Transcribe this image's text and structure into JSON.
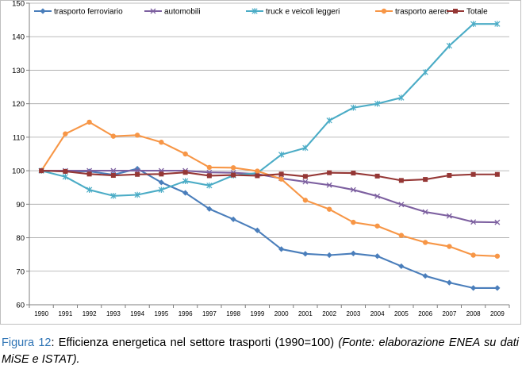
{
  "chart_data": {
    "type": "line",
    "title": "",
    "xlabel": "",
    "ylabel": "",
    "ylim": [
      60,
      150
    ],
    "yticks": [
      60,
      70,
      80,
      90,
      100,
      110,
      120,
      130,
      140,
      150
    ],
    "grid": "horizontal",
    "legend_position": "top",
    "categories": [
      "1990",
      "1991",
      "1992",
      "1993",
      "1994",
      "1995",
      "1996",
      "1997",
      "1998",
      "1999",
      "2000",
      "2001",
      "2002",
      "2003",
      "2004",
      "2005",
      "2006",
      "2007",
      "2008",
      "2009"
    ],
    "series": [
      {
        "name": "trasporto ferroviario",
        "color": "#4a7ebb",
        "marker": "diamond",
        "values": [
          100,
          99.8,
          99.8,
          98.8,
          100.6,
          96.5,
          93.4,
          88.6,
          85.5,
          82.2,
          76.6,
          75.2,
          74.8,
          75.3,
          74.5,
          71.5,
          68.6,
          66.6,
          65,
          65
        ]
      },
      {
        "name": "automobili",
        "color": "#7d60a0",
        "marker": "x",
        "values": [
          100,
          100,
          100,
          100,
          100,
          100,
          100,
          99.5,
          99.4,
          99,
          97.7,
          96.7,
          95.7,
          94.3,
          92.4,
          89.9,
          87.7,
          86.5,
          84.7,
          84.6
        ]
      },
      {
        "name": "truck e veicoli leggeri",
        "color": "#4bacc6",
        "marker": "star",
        "values": [
          100,
          98.2,
          94.3,
          92.5,
          92.8,
          94.3,
          96.9,
          95.6,
          98.6,
          99.3,
          104.8,
          106.8,
          115,
          118.8,
          120,
          121.8,
          129.4,
          137.3,
          143.8,
          143.8
        ]
      },
      {
        "name": "trasporto aereo",
        "color": "#f79646",
        "marker": "circle",
        "values": [
          100,
          111,
          114.5,
          110.3,
          110.6,
          108.5,
          105,
          101,
          100.9,
          99.9,
          97.5,
          91.2,
          88.5,
          84.6,
          83.5,
          80.7,
          78.6,
          77.4,
          74.8,
          74.5
        ]
      },
      {
        "name": "Totale",
        "color": "#953735",
        "marker": "square",
        "values": [
          100,
          99.8,
          99,
          98.6,
          98.9,
          99,
          99.5,
          98.5,
          98.7,
          98.5,
          99,
          98.3,
          99.4,
          99.3,
          98.4,
          97.1,
          97.4,
          98.6,
          98.9,
          98.9
        ]
      }
    ]
  },
  "caption": {
    "label": "Figura 12",
    "text": ": Efficienza energetica nel settore trasporti (1990=100) ",
    "source": "(Fonte: elaborazione ENEA su dati MiSE e ISTAT)."
  }
}
